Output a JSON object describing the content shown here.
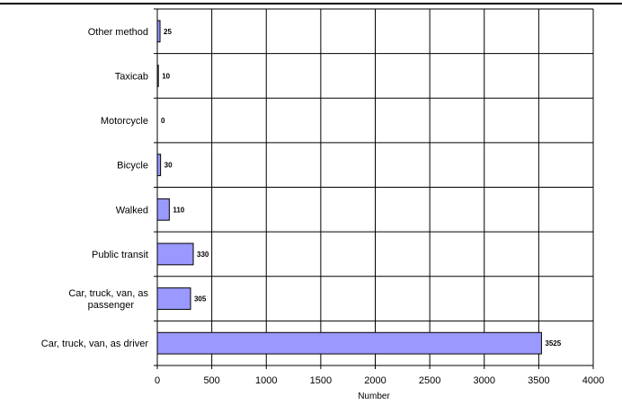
{
  "chart_data": {
    "type": "bar",
    "orientation": "horizontal",
    "categories": [
      "Other method",
      "Taxicab",
      "Motorcycle",
      "Bicycle",
      "Walked",
      "Public transit",
      "Car, truck, van, as passenger",
      "Car, truck, van, as driver"
    ],
    "category_lines": [
      [
        "Other method"
      ],
      [
        "Taxicab"
      ],
      [
        "Motorcycle"
      ],
      [
        "Bicycle"
      ],
      [
        "Walked"
      ],
      [
        "Public transit"
      ],
      [
        "Car, truck, van, as",
        "passenger"
      ],
      [
        "Car, truck, van, as driver"
      ]
    ],
    "values": [
      25,
      10,
      0,
      30,
      110,
      330,
      305,
      3525
    ],
    "xlabel": "Number",
    "xlim": [
      0,
      4000
    ],
    "xticks": [
      0,
      500,
      1000,
      1500,
      2000,
      2500,
      3000,
      3500,
      4000
    ],
    "grid": true,
    "legend": "none",
    "bar_color": "#9999ff"
  }
}
